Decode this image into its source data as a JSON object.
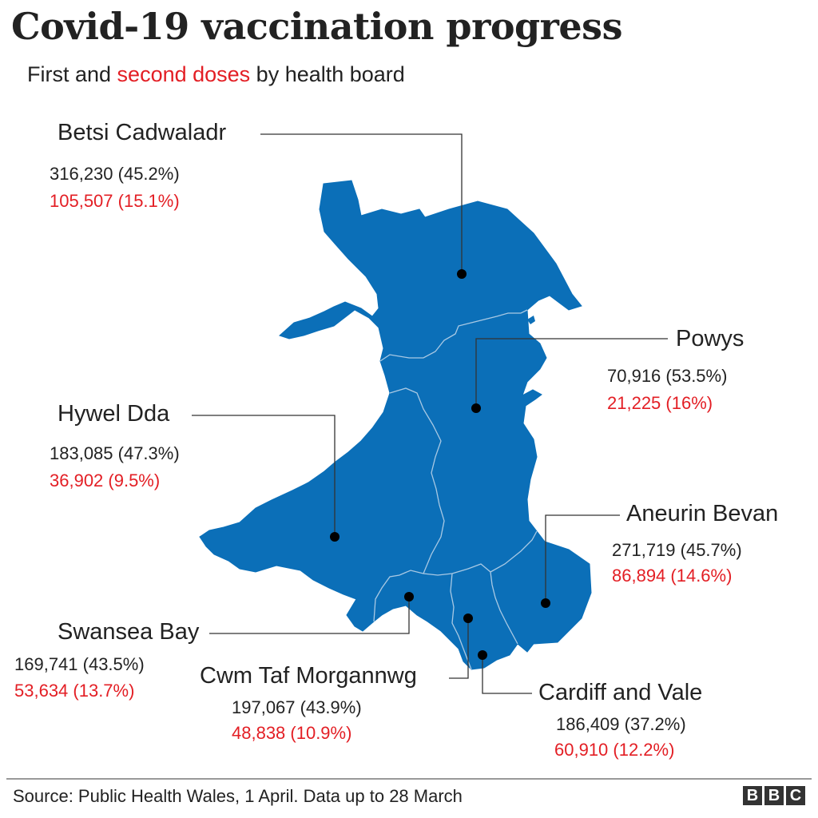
{
  "title": "Covid-19 vaccination progress",
  "subtitle": {
    "before": "First and ",
    "highlight": "second doses",
    "after": " by health board"
  },
  "colors": {
    "land": "#0b6fb8",
    "boundary": "#a9c9e4",
    "first_dose_text": "#222222",
    "second_dose_text": "#e31e24",
    "leader_line": "#333333"
  },
  "regions": {
    "betsi": {
      "name": "Betsi Cadwaladr",
      "first": "316,230  (45.2%)",
      "second": "105,507 (15.1%)"
    },
    "powys": {
      "name": "Powys",
      "first": "70,916 (53.5%)",
      "second": "21,225 (16%)"
    },
    "hywel": {
      "name": "Hywel Dda",
      "first": "183,085 (47.3%)",
      "second": "36,902 (9.5%)"
    },
    "aneurin": {
      "name": "Aneurin Bevan",
      "first": "271,719 (45.7%)",
      "second": "86,894 (14.6%)"
    },
    "swansea": {
      "name": "Swansea Bay",
      "first": "169,741 (43.5%)",
      "second": "53,634 (13.7%)"
    },
    "cwmtaf": {
      "name": "Cwm Taf Morgannwg",
      "first": "197,067 (43.9%)",
      "second": "48,838 (10.9%)"
    },
    "cardiff": {
      "name": "Cardiff and Vale",
      "first": "186,409 (37.2%)",
      "second": "60,910 (12.2%)"
    }
  },
  "source": "Source: Public Health Wales, 1 April. Data up to 28 March",
  "logo": [
    "B",
    "B",
    "C"
  ]
}
